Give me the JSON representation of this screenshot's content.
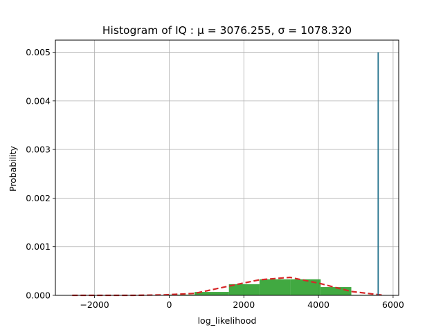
{
  "chart_data": {
    "type": "bar",
    "title": "Histogram of IQ :  μ = 3076.255,  σ = 1078.320",
    "xlabel": "log_likelihood",
    "ylabel": "Probability",
    "xlim": [
      -3050,
      6150
    ],
    "ylim": [
      0,
      0.00525
    ],
    "x_ticks": [
      -2000,
      0,
      2000,
      4000,
      6000
    ],
    "x_tick_labels": [
      "−2000",
      "0",
      "2000",
      "4000",
      "6000"
    ],
    "y_ticks": [
      0,
      0.001,
      0.002,
      0.003,
      0.004,
      0.005
    ],
    "y_tick_labels": [
      "0.000",
      "0.001",
      "0.002",
      "0.003",
      "0.004",
      "0.005"
    ],
    "grid": true,
    "bar_color": "#2ca02c",
    "bins": [
      {
        "x0": -2600,
        "x1": -1780,
        "value": 0
      },
      {
        "x0": -1780,
        "x1": -960,
        "value": 0
      },
      {
        "x0": -960,
        "x1": -140,
        "value": 0
      },
      {
        "x0": -140,
        "x1": 680,
        "value": 1.5e-05
      },
      {
        "x0": 680,
        "x1": 1600,
        "value": 7e-05
      },
      {
        "x0": 1600,
        "x1": 2420,
        "value": 0.00023
      },
      {
        "x0": 2420,
        "x1": 3240,
        "value": 0.00033
      },
      {
        "x0": 3240,
        "x1": 4060,
        "value": 0.00033
      },
      {
        "x0": 4060,
        "x1": 4880,
        "value": 0.00017
      },
      {
        "x0": 4880,
        "x1": 5700,
        "value": 1e-05
      }
    ],
    "fit_curve": {
      "style": "dashed",
      "color": "#d62728",
      "x": [
        -2600,
        -1780,
        -960,
        -140,
        680,
        1600,
        2420,
        3240,
        4060,
        4880,
        5700
      ],
      "y": [
        0,
        0,
        0,
        1e-05,
        4e-05,
        0.00019,
        0.00032,
        0.00037,
        0.00024,
        8e-05,
        5e-06
      ]
    },
    "vline": {
      "x": 5600,
      "y0": 0,
      "y1": 0.005,
      "color": "#1f6f8b"
    }
  }
}
